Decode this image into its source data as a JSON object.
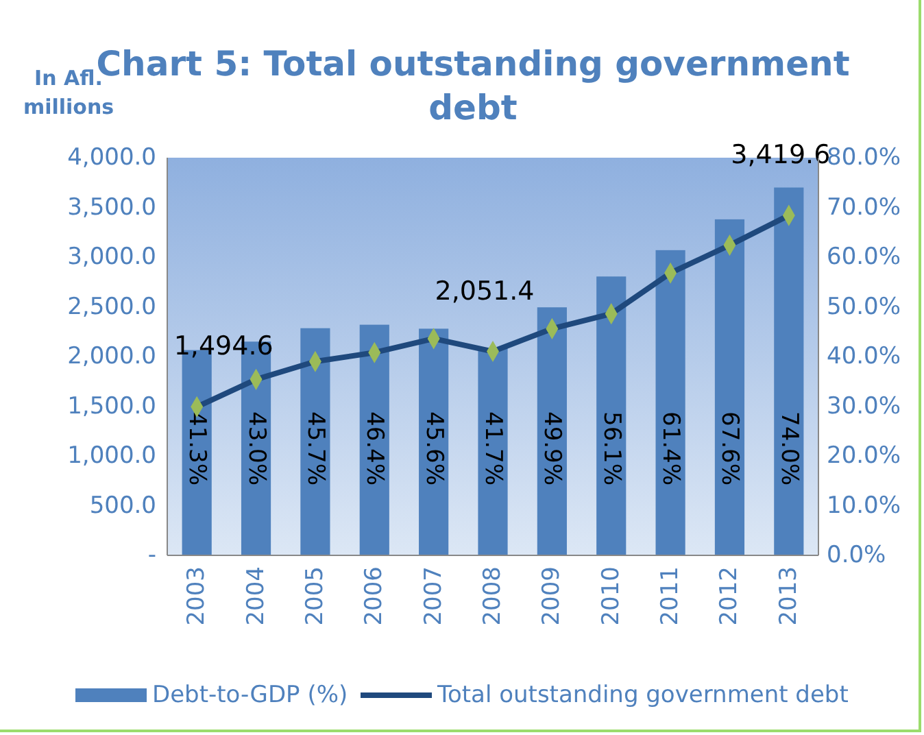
{
  "chart_data": {
    "type": "bar",
    "title": "Chart 5: Total outstanding government debt",
    "ylabel": "In Afl. millions",
    "categories": [
      "2003",
      "2004",
      "2005",
      "2006",
      "2007",
      "2008",
      "2009",
      "2010",
      "2011",
      "2012",
      "2013"
    ],
    "series": [
      {
        "name": "Debt-to-GDP (%)",
        "axis": "y2",
        "color": "#4f81bd",
        "values": [
          41.3,
          43.0,
          45.7,
          46.4,
          45.6,
          41.7,
          49.9,
          56.1,
          61.4,
          67.6,
          74.0
        ],
        "value_labels": [
          "41.3%",
          "43.0%",
          "45.7%",
          "46.4%",
          "45.6%",
          "41.7%",
          "49.9%",
          "56.1%",
          "61.4%",
          "67.6%",
          "74.0%"
        ]
      },
      {
        "name": "Total outstanding government debt",
        "type": "line",
        "color": "#1f497d",
        "marker": "diamond",
        "values": [
          1494.6,
          1770,
          1950,
          2040,
          2180,
          2051.4,
          2280,
          2430,
          2840,
          3120,
          3419.6
        ],
        "value_labels": [
          "1,494.6",
          null,
          null,
          null,
          null,
          "2,051.4",
          null,
          null,
          null,
          null,
          "3,419.6"
        ]
      }
    ],
    "ylim": [
      0,
      4000
    ],
    "yticks": [
      {
        "value": 0,
        "label": "-"
      },
      {
        "value": 500,
        "label": "500.0"
      },
      {
        "value": 1000,
        "label": "1,000.0"
      },
      {
        "value": 1500,
        "label": "1,500.0"
      },
      {
        "value": 2000,
        "label": "2,000.0"
      },
      {
        "value": 2500,
        "label": "2,500.0"
      },
      {
        "value": 3000,
        "label": "3,000.0"
      },
      {
        "value": 3500,
        "label": "3,500.0"
      },
      {
        "value": 4000,
        "label": "4,000.0"
      }
    ],
    "y2lim": [
      0,
      80
    ],
    "y2ticks": [
      {
        "value": 0,
        "label": "0.0%"
      },
      {
        "value": 10,
        "label": "10.0%"
      },
      {
        "value": 20,
        "label": "20.0%"
      },
      {
        "value": 30,
        "label": "30.0%"
      },
      {
        "value": 40,
        "label": "40.0%"
      },
      {
        "value": 50,
        "label": "50.0%"
      },
      {
        "value": 60,
        "label": "60.0%"
      },
      {
        "value": 70,
        "label": "70.0%"
      },
      {
        "value": 80,
        "label": "80.0%"
      }
    ],
    "legend": "bottom"
  }
}
